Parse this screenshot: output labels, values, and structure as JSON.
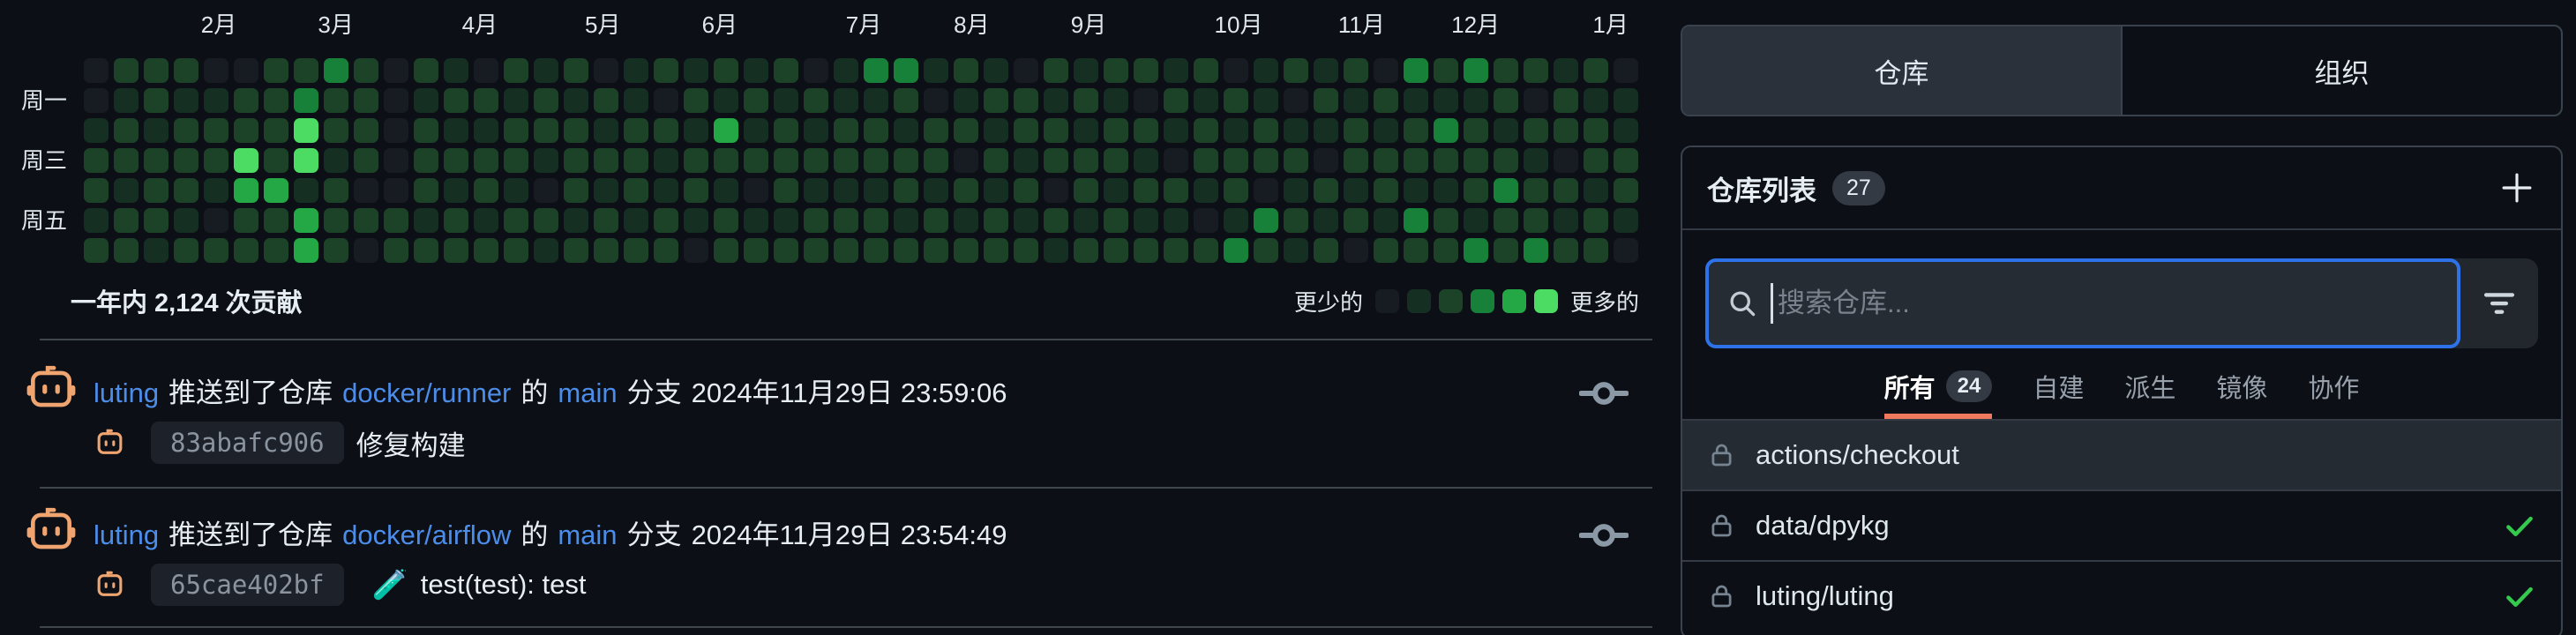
{
  "colors": {
    "background": "#0c1016",
    "link_blue": "#4c8dea",
    "search_border_blue": "#2d72e8",
    "active_filter_underline": "#ee795c",
    "check_green": "#35c94e",
    "avatar_orange": "#f0a470",
    "active_tab_bg": "#2b313b",
    "row_highlight_bg": "#252b32"
  },
  "heatmap": {
    "summary": "一年内 2,124 次贡献",
    "legend_less": "更少的",
    "legend_more": "更多的",
    "levels": [
      "#171c23",
      "#153022",
      "#1c4328",
      "#17813a",
      "#23a845",
      "#4cdc64"
    ],
    "months": [
      {
        "label": "2月",
        "col": 4.5
      },
      {
        "label": "3月",
        "col": 8.4
      },
      {
        "label": "4月",
        "col": 13.2
      },
      {
        "label": "5月",
        "col": 17.3
      },
      {
        "label": "6月",
        "col": 21.2
      },
      {
        "label": "7月",
        "col": 26
      },
      {
        "label": "8月",
        "col": 29.6
      },
      {
        "label": "9月",
        "col": 33.5
      },
      {
        "label": "10月",
        "col": 38.5
      },
      {
        "label": "11月",
        "col": 42.6
      },
      {
        "label": "12月",
        "col": 46.4
      },
      {
        "label": "1月",
        "col": 50.9
      }
    ],
    "weekdays": [
      {
        "label": "周一",
        "row": 1
      },
      {
        "label": "周三",
        "row": 3
      },
      {
        "label": "周五",
        "row": 5
      }
    ],
    "weeks": [
      "0012212",
      "2122122",
      "2212221",
      "2122212",
      "0122102",
      "0225422",
      "2222422",
      "2355144",
      "3221222",
      "2222020",
      "0000022",
      "2122212",
      "1212122",
      "0212212",
      "2122122",
      "1221021",
      "2122212",
      "0212122",
      "1122212",
      "2021122",
      "1212210",
      "2142122",
      "1212012",
      "2122212",
      "0212122",
      "1122122",
      "3122122",
      "3212212",
      "1022122",
      "2120212",
      "1212122",
      "0221212",
      "2122021",
      "1212212",
      "2122122",
      "2021212",
      "1210212",
      "2122102",
      "0212213",
      "1122032",
      "2012121",
      "1210212",
      "2122120",
      "0212212",
      "3122132",
      "2132122",
      "3122213",
      "2212322",
      "2021223",
      "1220212",
      "2122122",
      "0112210"
    ]
  },
  "feed": {
    "items": [
      {
        "user": "luting",
        "action": "推送到了仓库",
        "repo": "docker/runner",
        "of": "的",
        "branch": "main",
        "branch_word": "分支",
        "time": "2024年11月29日 23:59:06",
        "hash": "83abafc906",
        "emoji": "",
        "message": "修复构建"
      },
      {
        "user": "luting",
        "action": "推送到了仓库",
        "repo": "docker/airflow",
        "of": "的",
        "branch": "main",
        "branch_word": "分支",
        "time": "2024年11月29日 23:54:49",
        "hash": "65cae402bf",
        "emoji": "🧪",
        "message": "test(test): test"
      }
    ]
  },
  "panel": {
    "tabs": [
      {
        "label": "仓库",
        "active": true
      },
      {
        "label": "组织",
        "active": false
      }
    ],
    "list_header": {
      "title": "仓库列表",
      "count": "27"
    },
    "search": {
      "placeholder": "搜索仓库..."
    },
    "filters": [
      {
        "label": "所有",
        "count": "24",
        "active": true
      },
      {
        "label": "自建",
        "active": false
      },
      {
        "label": "派生",
        "active": false
      },
      {
        "label": "镜像",
        "active": false
      },
      {
        "label": "协作",
        "active": false
      }
    ],
    "repos": [
      {
        "name": "actions/checkout",
        "checked": false,
        "highlighted": true
      },
      {
        "name": "data/dpykg",
        "checked": true,
        "highlighted": false
      },
      {
        "name": "luting/luting",
        "checked": true,
        "highlighted": false
      }
    ]
  }
}
